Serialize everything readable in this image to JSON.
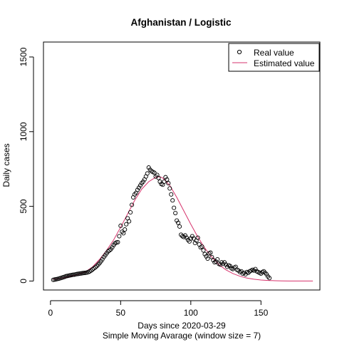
{
  "chart_data": {
    "type": "scatter",
    "title": "Afghanistan / Logistic",
    "xlabel": "Days since 2020-03-29",
    "xlabel_sub": "Simple Moving Avarage (window size = 7)",
    "ylabel": "Daily cases",
    "xlim": [
      -5,
      192
    ],
    "ylim": [
      -60,
      1600
    ],
    "x_ticks": [
      0,
      50,
      100,
      150
    ],
    "y_ticks": [
      0,
      500,
      1000,
      1500
    ],
    "grid": false,
    "legend_position": "top-right",
    "legend": [
      {
        "label": "Real value",
        "symbol": "open-circle"
      },
      {
        "label": "Estimated value",
        "symbol": "line"
      }
    ],
    "series": [
      {
        "name": "Real value",
        "kind": "points",
        "color": "#000000",
        "points": [
          [
            2,
            8
          ],
          [
            3,
            10
          ],
          [
            4,
            12
          ],
          [
            5,
            14
          ],
          [
            6,
            16
          ],
          [
            7,
            19
          ],
          [
            8,
            22
          ],
          [
            9,
            25
          ],
          [
            10,
            28
          ],
          [
            11,
            32
          ],
          [
            12,
            34
          ],
          [
            13,
            36
          ],
          [
            14,
            38
          ],
          [
            15,
            40
          ],
          [
            16,
            42
          ],
          [
            17,
            43
          ],
          [
            18,
            45
          ],
          [
            19,
            47
          ],
          [
            20,
            48
          ],
          [
            21,
            50
          ],
          [
            22,
            51
          ],
          [
            23,
            53
          ],
          [
            24,
            54
          ],
          [
            25,
            55
          ],
          [
            26,
            57
          ],
          [
            27,
            60
          ],
          [
            28,
            65
          ],
          [
            29,
            70
          ],
          [
            30,
            78
          ],
          [
            31,
            85
          ],
          [
            32,
            92
          ],
          [
            33,
            100
          ],
          [
            34,
            110
          ],
          [
            35,
            120
          ],
          [
            36,
            132
          ],
          [
            37,
            145
          ],
          [
            38,
            160
          ],
          [
            39,
            172
          ],
          [
            40,
            185
          ],
          [
            41,
            198
          ],
          [
            42,
            205
          ],
          [
            43,
            212
          ],
          [
            44,
            225
          ],
          [
            45,
            240
          ],
          [
            46,
            252
          ],
          [
            47,
            258
          ],
          [
            48,
            260
          ],
          [
            49,
            300
          ],
          [
            50,
            370
          ],
          [
            51,
            330
          ],
          [
            52,
            320
          ],
          [
            53,
            345
          ],
          [
            54,
            380
          ],
          [
            55,
            420
          ],
          [
            56,
            400
          ],
          [
            57,
            460
          ],
          [
            58,
            510
          ],
          [
            59,
            560
          ],
          [
            60,
            580
          ],
          [
            61,
            590
          ],
          [
            62,
            610
          ],
          [
            63,
            625
          ],
          [
            64,
            640
          ],
          [
            65,
            655
          ],
          [
            66,
            665
          ],
          [
            67,
            680
          ],
          [
            68,
            700
          ],
          [
            69,
            720
          ],
          [
            70,
            760
          ],
          [
            71,
            745
          ],
          [
            72,
            735
          ],
          [
            73,
            730
          ],
          [
            74,
            725
          ],
          [
            75,
            700
          ],
          [
            76,
            710
          ],
          [
            77,
            690
          ],
          [
            78,
            665
          ],
          [
            79,
            650
          ],
          [
            80,
            645
          ],
          [
            81,
            665
          ],
          [
            82,
            695
          ],
          [
            83,
            680
          ],
          [
            84,
            655
          ],
          [
            85,
            620
          ],
          [
            86,
            580
          ],
          [
            87,
            540
          ],
          [
            88,
            490
          ],
          [
            89,
            455
          ],
          [
            90,
            405
          ],
          [
            91,
            390
          ],
          [
            92,
            365
          ],
          [
            93,
            310
          ],
          [
            94,
            300
          ],
          [
            95,
            295
          ],
          [
            96,
            305
          ],
          [
            97,
            290
          ],
          [
            98,
            275
          ],
          [
            99,
            265
          ],
          [
            100,
            285
          ],
          [
            101,
            300
          ],
          [
            102,
            285
          ],
          [
            103,
            255
          ],
          [
            104,
            270
          ],
          [
            105,
            290
          ],
          [
            106,
            245
          ],
          [
            107,
            225
          ],
          [
            108,
            230
          ],
          [
            109,
            205
          ],
          [
            110,
            180
          ],
          [
            111,
            165
          ],
          [
            112,
            150
          ],
          [
            113,
            185
          ],
          [
            114,
            190
          ],
          [
            115,
            160
          ],
          [
            116,
            140
          ],
          [
            117,
            125
          ],
          [
            118,
            130
          ],
          [
            119,
            145
          ],
          [
            120,
            115
          ],
          [
            121,
            110
          ],
          [
            122,
            125
          ],
          [
            123,
            115
          ],
          [
            124,
            125
          ],
          [
            125,
            110
          ],
          [
            126,
            95
          ],
          [
            127,
            105
          ],
          [
            128,
            100
          ],
          [
            129,
            85
          ],
          [
            130,
            80
          ],
          [
            131,
            90
          ],
          [
            132,
            95
          ],
          [
            133,
            75
          ],
          [
            134,
            70
          ],
          [
            135,
            60
          ],
          [
            136,
            65
          ],
          [
            137,
            50
          ],
          [
            138,
            55
          ],
          [
            139,
            45
          ],
          [
            140,
            60
          ],
          [
            141,
            55
          ],
          [
            142,
            65
          ],
          [
            143,
            70
          ],
          [
            144,
            75
          ],
          [
            145,
            70
          ],
          [
            146,
            80
          ],
          [
            147,
            65
          ],
          [
            148,
            60
          ],
          [
            149,
            55
          ],
          [
            150,
            50
          ],
          [
            151,
            60
          ],
          [
            152,
            65
          ],
          [
            153,
            55
          ],
          [
            154,
            45
          ],
          [
            155,
            30
          ],
          [
            156,
            20
          ]
        ]
      },
      {
        "name": "Estimated value",
        "kind": "line",
        "color": "#d6336c",
        "points": [
          [
            2,
            12
          ],
          [
            10,
            22
          ],
          [
            20,
            45
          ],
          [
            25,
            62
          ],
          [
            30,
            95
          ],
          [
            35,
            145
          ],
          [
            40,
            205
          ],
          [
            45,
            275
          ],
          [
            50,
            360
          ],
          [
            55,
            450
          ],
          [
            60,
            540
          ],
          [
            65,
            615
          ],
          [
            70,
            665
          ],
          [
            75,
            695
          ],
          [
            78,
            698
          ],
          [
            80,
            690
          ],
          [
            85,
            640
          ],
          [
            90,
            560
          ],
          [
            95,
            470
          ],
          [
            100,
            380
          ],
          [
            105,
            295
          ],
          [
            110,
            220
          ],
          [
            115,
            160
          ],
          [
            120,
            110
          ],
          [
            125,
            75
          ],
          [
            130,
            50
          ],
          [
            135,
            32
          ],
          [
            140,
            20
          ],
          [
            145,
            12
          ],
          [
            150,
            7
          ],
          [
            155,
            4
          ],
          [
            160,
            2
          ],
          [
            165,
            1
          ],
          [
            170,
            0
          ],
          [
            180,
            0
          ],
          [
            187,
            0
          ]
        ]
      }
    ]
  }
}
